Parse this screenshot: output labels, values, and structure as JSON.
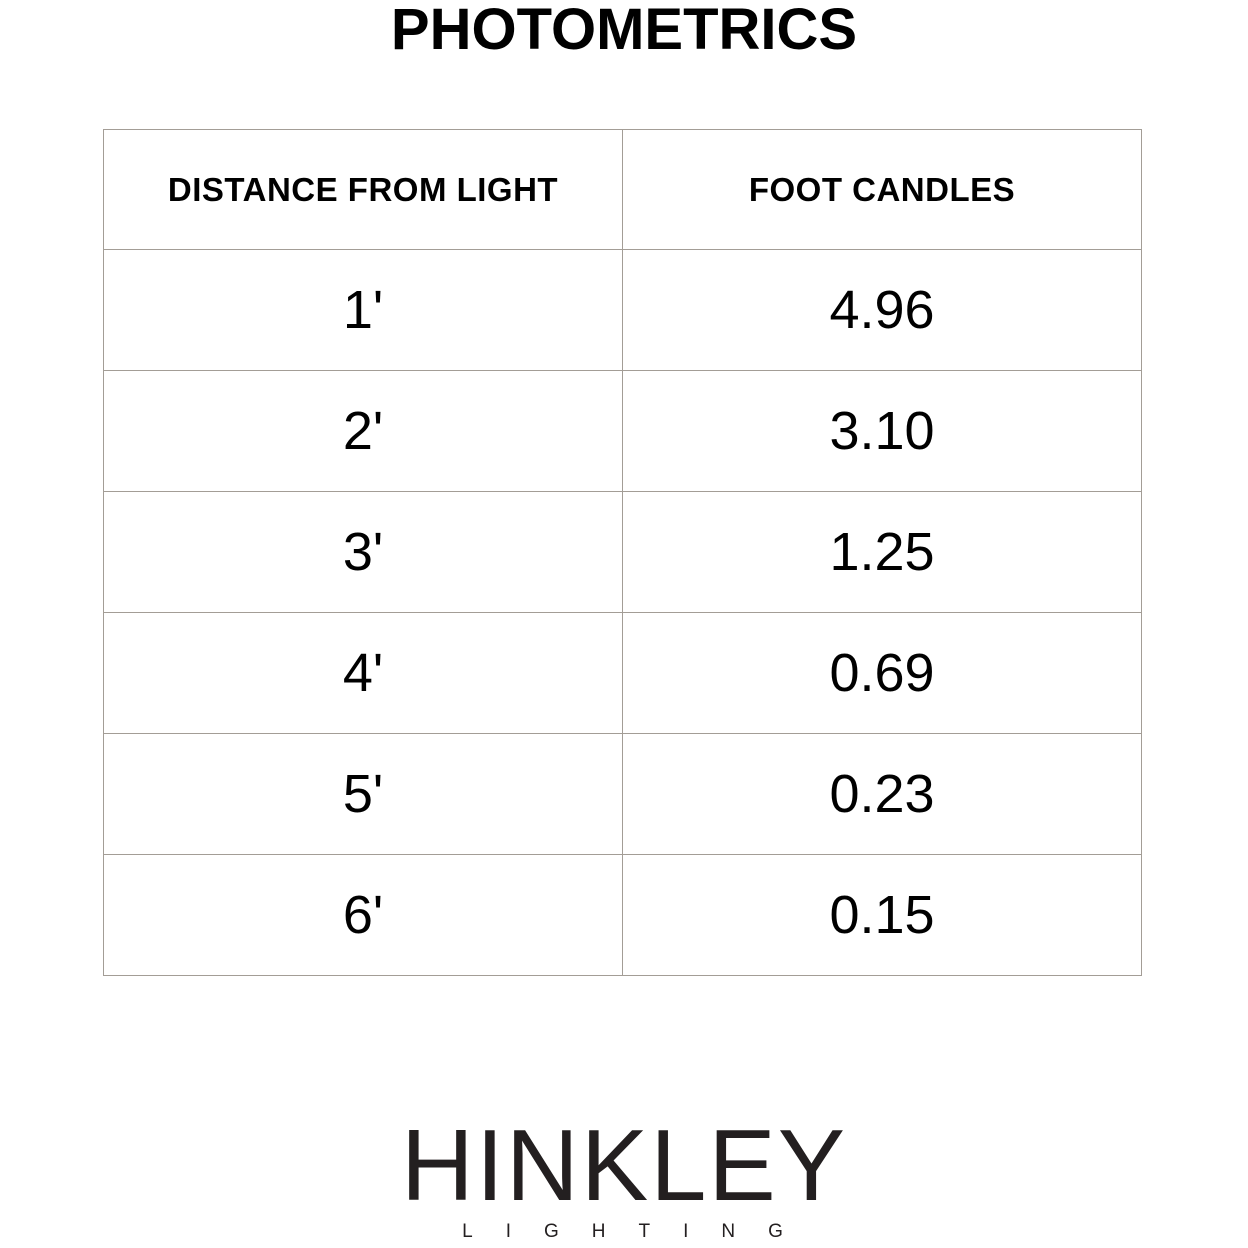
{
  "title": "PHOTOMETRICS",
  "table": {
    "headers": [
      "DISTANCE FROM LIGHT",
      "FOOT CANDLES"
    ],
    "rows": [
      [
        "1'",
        "4.96"
      ],
      [
        "2'",
        "3.10"
      ],
      [
        "3'",
        "1.25"
      ],
      [
        "4'",
        "0.69"
      ],
      [
        "5'",
        "0.23"
      ],
      [
        "6'",
        "0.15"
      ]
    ]
  },
  "logo": {
    "brand": "HINKLEY",
    "sub": "LIGHTING"
  },
  "colors": {
    "border": "#a39d96",
    "text": "#000000",
    "logo": "#231f20"
  }
}
